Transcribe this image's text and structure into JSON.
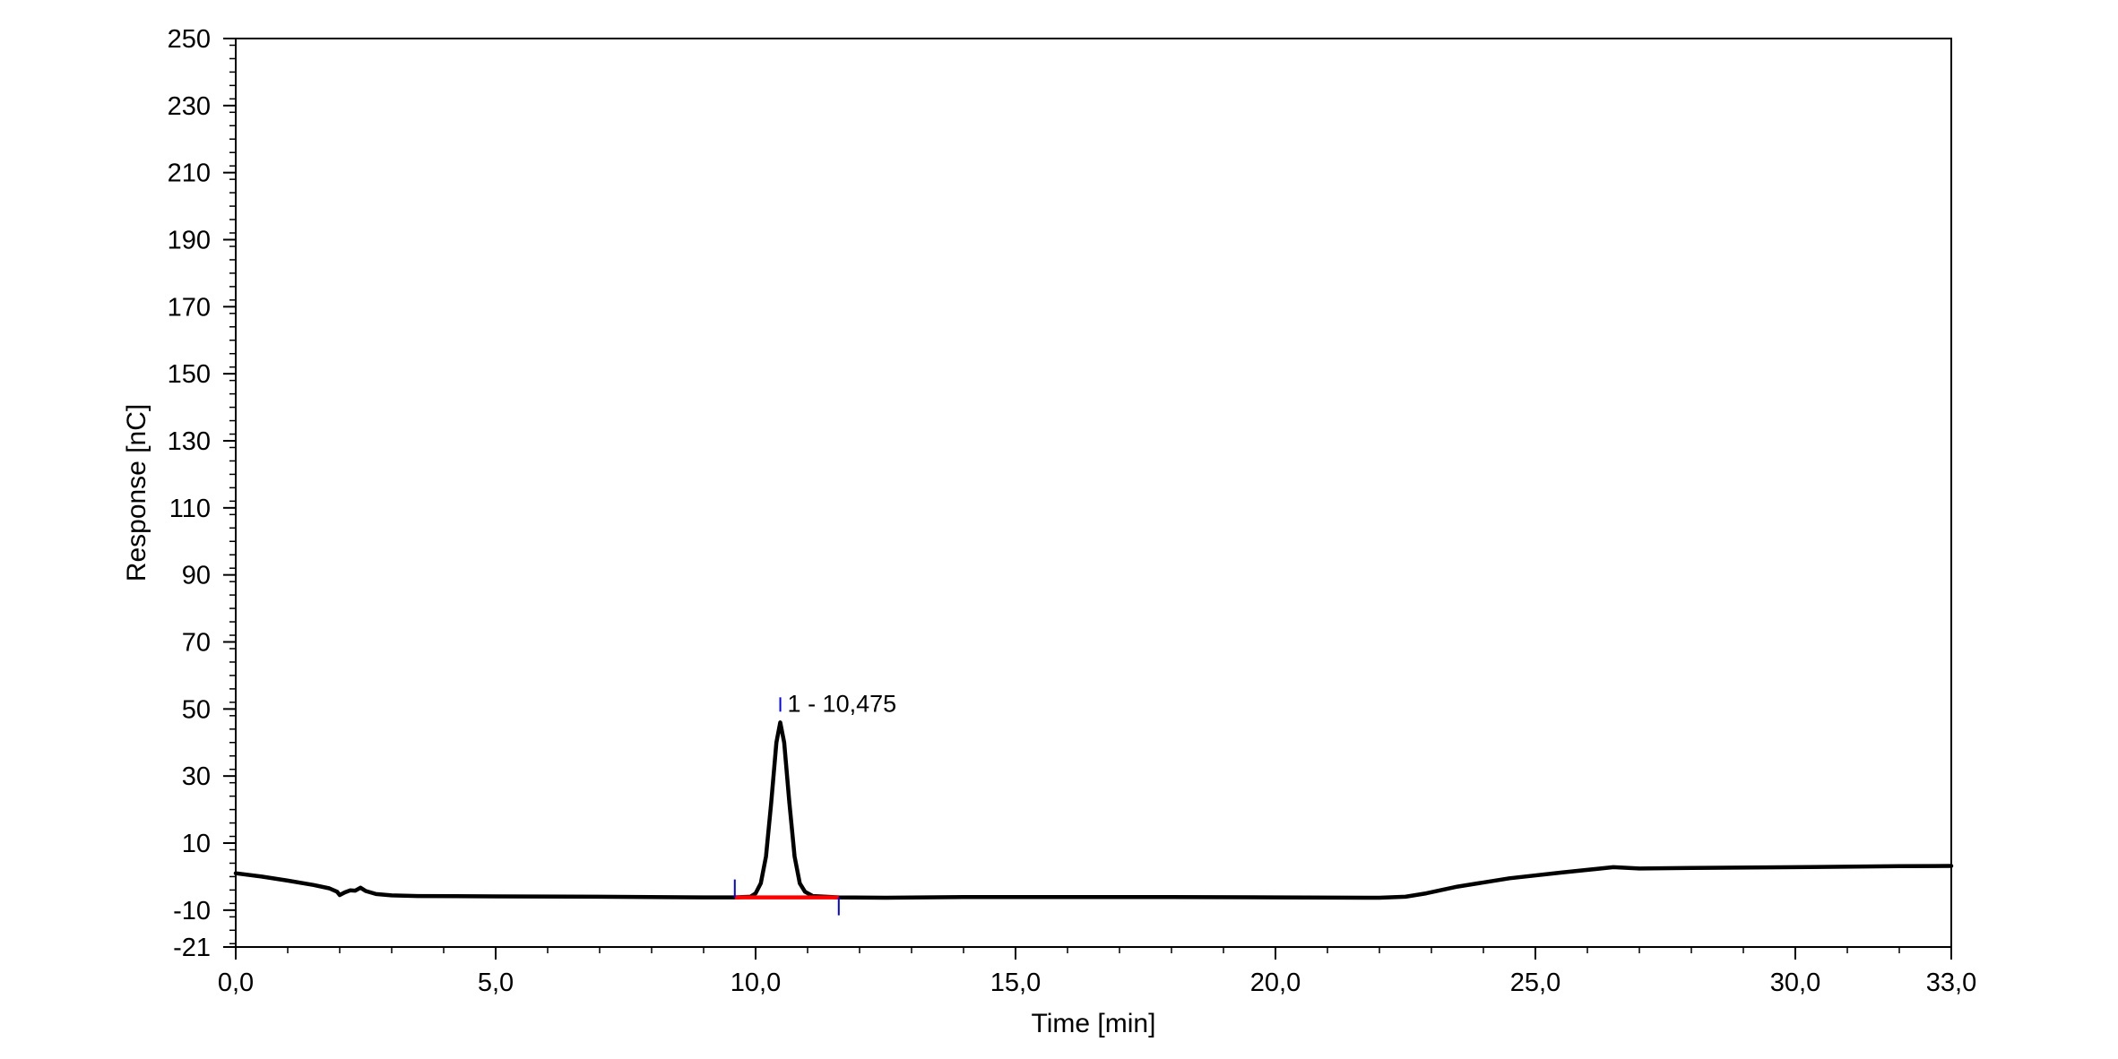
{
  "chart_data": {
    "type": "line",
    "title": "",
    "xlabel": "Time [min]",
    "ylabel": "Response [nC]",
    "xlim": [
      0,
      33
    ],
    "ylim": [
      -21,
      250
    ],
    "x_ticks": [
      0,
      5,
      10,
      15,
      20,
      25,
      30,
      33
    ],
    "x_tick_labels": [
      "0,0",
      "5,0",
      "10,0",
      "15,0",
      "20,0",
      "25,0",
      "30,0",
      "33,0"
    ],
    "y_ticks": [
      -21,
      -10,
      10,
      30,
      50,
      70,
      90,
      110,
      130,
      150,
      170,
      190,
      210,
      230,
      250
    ],
    "y_tick_labels": [
      "-21",
      "-10",
      "10",
      "30",
      "50",
      "70",
      "90",
      "110",
      "130",
      "150",
      "170",
      "190",
      "210",
      "230",
      "250"
    ],
    "x_minor_step": 1,
    "y_minor_step": 4,
    "grid": false,
    "series": [
      {
        "color": "#000000",
        "points": [
          [
            0.0,
            1.0
          ],
          [
            0.5,
            0.0
          ],
          [
            1.0,
            -1.2
          ],
          [
            1.5,
            -2.5
          ],
          [
            1.8,
            -3.5
          ],
          [
            1.95,
            -4.5
          ],
          [
            2.0,
            -5.5
          ],
          [
            2.1,
            -4.7
          ],
          [
            2.2,
            -4.1
          ],
          [
            2.3,
            -4.2
          ],
          [
            2.4,
            -3.3
          ],
          [
            2.5,
            -4.3
          ],
          [
            2.7,
            -5.2
          ],
          [
            3.0,
            -5.6
          ],
          [
            3.5,
            -5.8
          ],
          [
            5.0,
            -5.9
          ],
          [
            7.0,
            -6.0
          ],
          [
            9.0,
            -6.2
          ],
          [
            9.6,
            -6.2
          ],
          [
            9.9,
            -6.0
          ],
          [
            10.0,
            -5.0
          ],
          [
            10.1,
            -2.0
          ],
          [
            10.2,
            6.0
          ],
          [
            10.3,
            22.0
          ],
          [
            10.4,
            40.0
          ],
          [
            10.475,
            46.0
          ],
          [
            10.55,
            40.0
          ],
          [
            10.65,
            22.0
          ],
          [
            10.75,
            6.0
          ],
          [
            10.85,
            -2.0
          ],
          [
            10.95,
            -4.5
          ],
          [
            11.1,
            -5.8
          ],
          [
            11.6,
            -6.2
          ],
          [
            12.5,
            -6.3
          ],
          [
            14.0,
            -6.1
          ],
          [
            16.0,
            -6.1
          ],
          [
            18.0,
            -6.1
          ],
          [
            20.0,
            -6.2
          ],
          [
            22.0,
            -6.3
          ],
          [
            22.5,
            -6.0
          ],
          [
            22.9,
            -5.0
          ],
          [
            23.5,
            -3.0
          ],
          [
            24.5,
            -0.5
          ],
          [
            25.5,
            1.2
          ],
          [
            26.5,
            2.8
          ],
          [
            27.0,
            2.4
          ],
          [
            28.0,
            2.6
          ],
          [
            30.0,
            2.8
          ],
          [
            32.0,
            3.1
          ],
          [
            33.0,
            3.2
          ]
        ]
      }
    ],
    "baseline": {
      "color": "#ff0000",
      "x": [
        9.6,
        11.6
      ],
      "y": [
        -6.2,
        -6.2
      ]
    },
    "peak_markers": {
      "color": "#0000ff",
      "start": {
        "x": 9.6,
        "y": -6.2
      },
      "apex": {
        "x": 10.475,
        "y": 46.0
      },
      "end": {
        "x": 11.6,
        "y": -6.2
      }
    },
    "annotations": [
      {
        "text": "1 - 10,475",
        "x": 10.475,
        "y": 46.0
      }
    ]
  }
}
